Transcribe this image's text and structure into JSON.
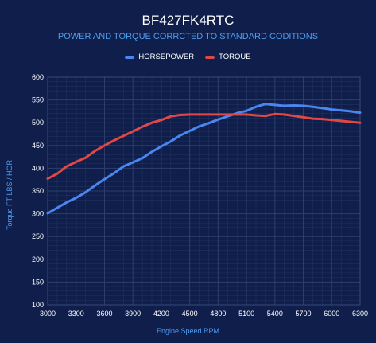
{
  "colors": {
    "background": "#0f1e4b",
    "horsepower": "#4a86f0",
    "torque": "#e04848",
    "grid": "#2e3f6e"
  },
  "chart_data": {
    "type": "line",
    "title": "BF427FK4RTC",
    "subtitle": "POWER AND TORQUE CORRCTED TO STANDARD CODITIONS",
    "xlabel": "Engine Speed RPM",
    "ylabel": "Torque FT-LBS / HOR",
    "xlim": [
      3000,
      6300
    ],
    "ylim": [
      100,
      600
    ],
    "xticks": [
      "3000",
      "3300",
      "3600",
      "3900",
      "4200",
      "4500",
      "4800",
      "5100",
      "5400",
      "5700",
      "6000",
      "6300"
    ],
    "yticks": [
      "100",
      "150",
      "200",
      "250",
      "300",
      "350",
      "400",
      "450",
      "500",
      "550",
      "600"
    ],
    "grid": true,
    "legend": "top-center",
    "series": [
      {
        "name": "HORSEPOWER",
        "color": "#4a86f0",
        "x": [
          3000,
          3100,
          3200,
          3300,
          3400,
          3500,
          3600,
          3700,
          3800,
          3900,
          4000,
          4100,
          4200,
          4300,
          4400,
          4500,
          4600,
          4700,
          4800,
          4900,
          5000,
          5100,
          5200,
          5300,
          5400,
          5500,
          5600,
          5700,
          5800,
          5900,
          6000,
          6100,
          6200,
          6300
        ],
        "y": [
          301,
          313,
          325,
          335,
          347,
          362,
          376,
          389,
          404,
          413,
          422,
          436,
          448,
          459,
          472,
          482,
          492,
          499,
          507,
          514,
          521,
          526,
          535,
          541,
          539,
          537,
          538,
          537,
          535,
          532,
          529,
          527,
          525,
          522
        ]
      },
      {
        "name": "TORQUE",
        "color": "#e04848",
        "x": [
          3000,
          3100,
          3200,
          3300,
          3400,
          3500,
          3600,
          3700,
          3800,
          3900,
          4000,
          4100,
          4200,
          4300,
          4400,
          4500,
          4600,
          4700,
          4800,
          4900,
          5000,
          5100,
          5200,
          5300,
          5400,
          5500,
          5600,
          5700,
          5800,
          5900,
          6000,
          6100,
          6200,
          6300
        ],
        "y": [
          377,
          388,
          404,
          414,
          423,
          438,
          450,
          461,
          471,
          481,
          491,
          500,
          506,
          514,
          517,
          518,
          518,
          518,
          518,
          518,
          518,
          518,
          516,
          515,
          519,
          518,
          515,
          512,
          509,
          508,
          506,
          504,
          502,
          500
        ]
      }
    ]
  }
}
